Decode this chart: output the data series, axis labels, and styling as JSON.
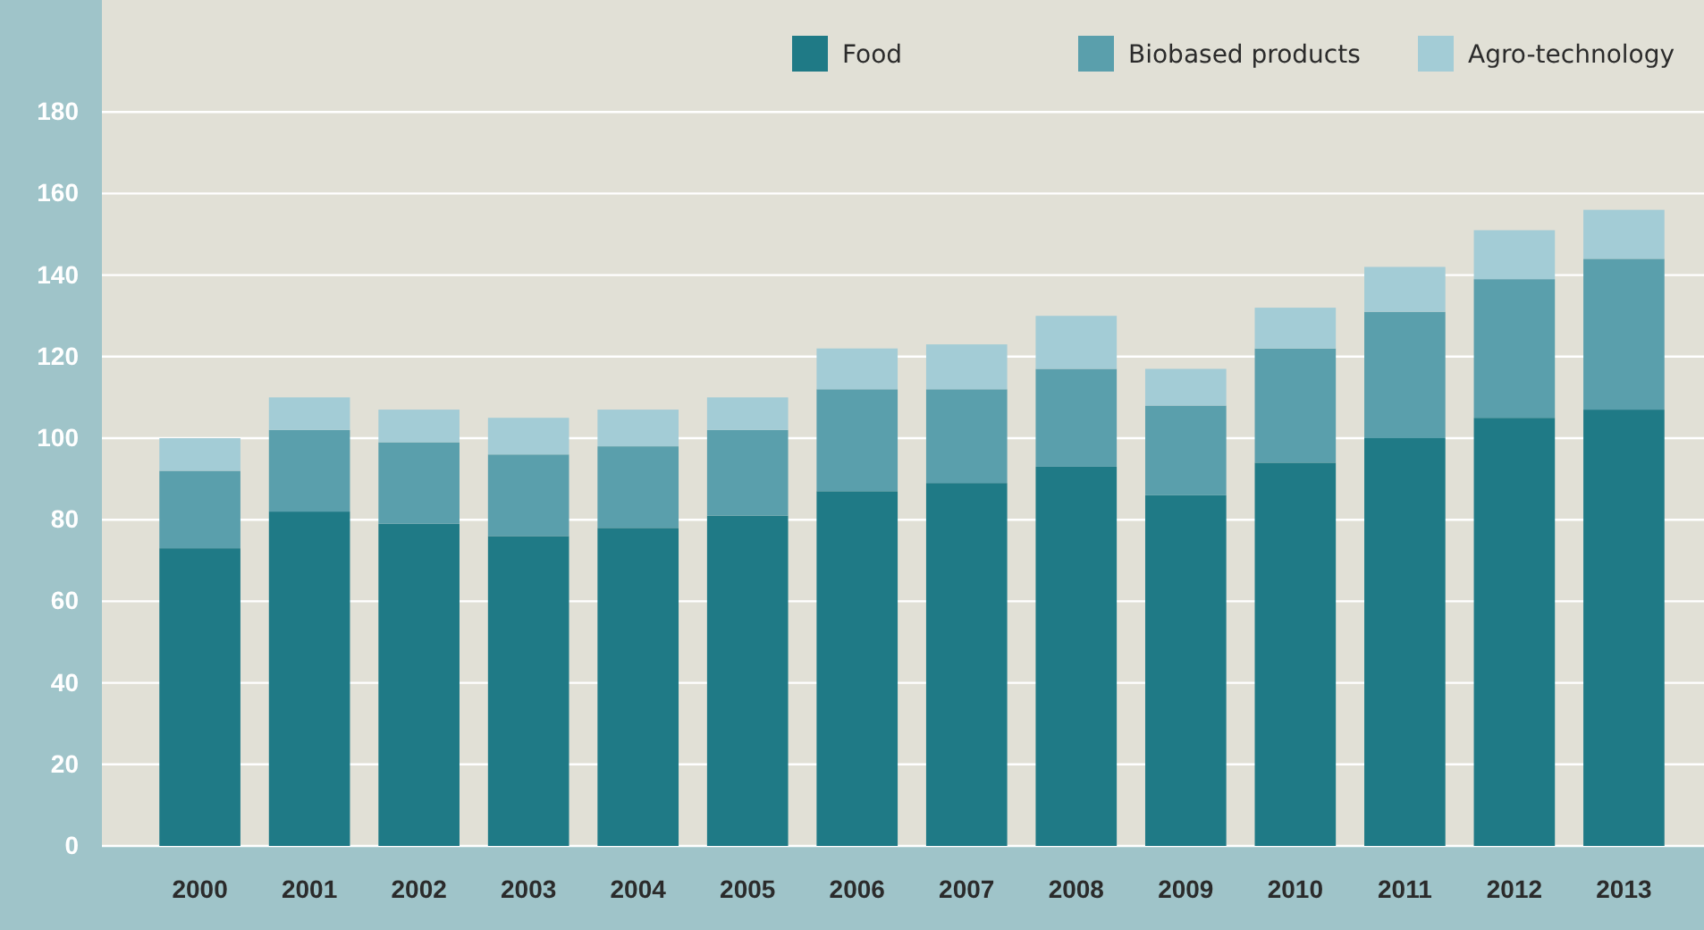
{
  "chart_data": {
    "type": "bar",
    "stacked": true,
    "categories": [
      "2000",
      "2001",
      "2002",
      "2003",
      "2004",
      "2005",
      "2006",
      "2007",
      "2008",
      "2009",
      "2010",
      "2011",
      "2012",
      "2013"
    ],
    "series": [
      {
        "name": "Food",
        "color": "#1f7a86",
        "values": [
          73,
          82,
          79,
          76,
          78,
          81,
          87,
          89,
          93,
          86,
          94,
          100,
          105,
          107
        ]
      },
      {
        "name": "Biobased products",
        "color": "#5a9fac",
        "values": [
          19,
          20,
          20,
          20,
          20,
          21,
          25,
          23,
          24,
          22,
          28,
          31,
          34,
          37
        ]
      },
      {
        "name": "Agro-technology",
        "color": "#a3ccd6",
        "values": [
          8,
          8,
          8,
          9,
          9,
          8,
          10,
          11,
          13,
          9,
          10,
          11,
          12,
          12
        ]
      }
    ],
    "ylim": [
      0,
      200
    ],
    "yticks": [
      0,
      20,
      40,
      60,
      80,
      100,
      120,
      140,
      160,
      180
    ],
    "grid": "y",
    "legend": "top right"
  }
}
